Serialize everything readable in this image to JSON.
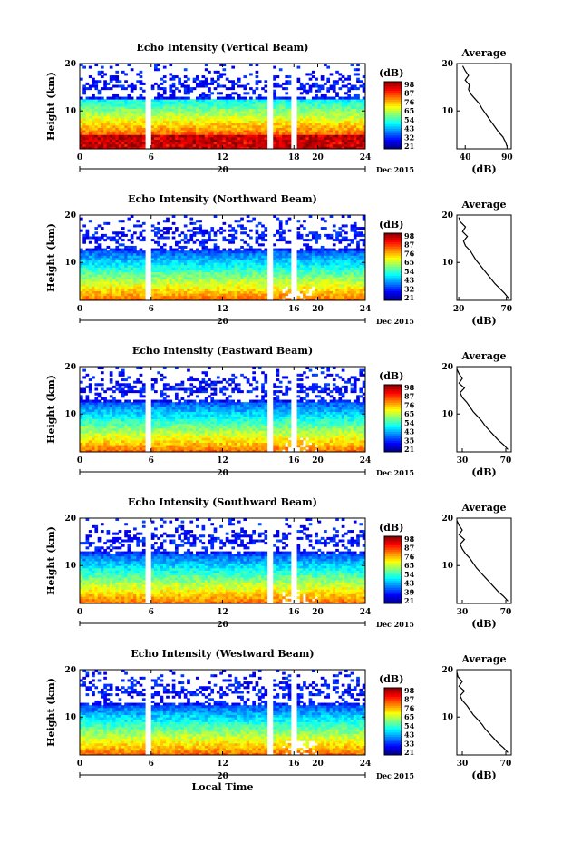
{
  "figure": {
    "xlabel": "Local Time",
    "unit_label": "(dB)",
    "average_title": "Average"
  },
  "chart_data": [
    {
      "type": "heatmap",
      "title": "Echo Intensity (Vertical Beam)",
      "ylabel": "Height (km)",
      "xlabel": "",
      "x_ticks": [
        "0",
        "6",
        "12",
        "18",
        "20",
        "24"
      ],
      "xlim": [
        0,
        24
      ],
      "y_ticks": [
        "10",
        "20"
      ],
      "ylim": [
        2,
        20
      ],
      "date_marker": "20",
      "date_label": "Dec 2015",
      "colorbar": {
        "label": "(dB)",
        "ticks": [
          "98",
          "87",
          "76",
          "65",
          "54",
          "43",
          "32",
          "21"
        ],
        "range": [
          21,
          98
        ]
      },
      "gaps": [
        5.7,
        16.0,
        17.9
      ],
      "profile": {
        "title": "Average",
        "xlabel": "(dB)",
        "x_ticks": [
          "40",
          "90"
        ],
        "xlim": [
          30,
          95
        ],
        "y_ticks": [
          "10",
          "20"
        ],
        "heights": [
          2.5,
          3.5,
          4.5,
          5.5,
          6.5,
          7.5,
          8.5,
          9.5,
          10.5,
          11.5,
          12.5,
          13.5,
          14.5,
          15.5,
          16.5,
          17.5,
          18.5,
          19.5
        ],
        "values": [
          90,
          88,
          85,
          80,
          76,
          72,
          68,
          64,
          60,
          57,
          52,
          47,
          44,
          45,
          40,
          44,
          40,
          37
        ]
      }
    },
    {
      "type": "heatmap",
      "title": "Echo Intensity (Northward Beam)",
      "ylabel": "Height (km)",
      "xlabel": "",
      "x_ticks": [
        "0",
        "6",
        "12",
        "16",
        "20",
        "24"
      ],
      "xlim": [
        0,
        24
      ],
      "y_ticks": [
        "10",
        "20"
      ],
      "ylim": [
        2,
        20
      ],
      "date_marker": "20",
      "date_label": "Dec 2015",
      "colorbar": {
        "label": "(dB)",
        "ticks": [
          "98",
          "87",
          "76",
          "65",
          "54",
          "43",
          "32",
          "21"
        ],
        "range": [
          21,
          98
        ]
      },
      "gaps": [
        5.7,
        16.0,
        17.9
      ],
      "profile": {
        "title": "Average",
        "xlabel": "(dB)",
        "x_ticks": [
          "20",
          "70"
        ],
        "xlim": [
          18,
          75
        ],
        "y_ticks": [
          "10",
          "20"
        ],
        "heights": [
          2.5,
          3.5,
          4.5,
          5.5,
          6.5,
          7.5,
          8.5,
          9.5,
          10.5,
          11.5,
          12.5,
          13.5,
          14.5,
          15.5,
          16.5,
          17.5,
          18.5,
          19.5
        ],
        "values": [
          72,
          68,
          63,
          58,
          54,
          50,
          46,
          42,
          38,
          35,
          32,
          27,
          25,
          29,
          24,
          27,
          22,
          20
        ]
      }
    },
    {
      "type": "heatmap",
      "title": "Echo Intensity (Eastward Beam)",
      "ylabel": "Height (km)",
      "xlabel": "",
      "x_ticks": [
        "0",
        "6",
        "12",
        "16",
        "20",
        "24"
      ],
      "xlim": [
        0,
        24
      ],
      "y_ticks": [
        "10",
        "20"
      ],
      "ylim": [
        2,
        20
      ],
      "date_marker": "20",
      "date_label": "Dec 2015",
      "colorbar": {
        "label": "(dB)",
        "ticks": [
          "98",
          "87",
          "76",
          "65",
          "54",
          "43",
          "35",
          "21"
        ],
        "range": [
          21,
          98
        ]
      },
      "gaps": [
        5.7,
        16.0,
        17.9
      ],
      "profile": {
        "title": "Average",
        "xlabel": "(dB)",
        "x_ticks": [
          "30",
          "70"
        ],
        "xlim": [
          25,
          75
        ],
        "y_ticks": [
          "10",
          "20"
        ],
        "heights": [
          2.5,
          3.5,
          4.5,
          5.5,
          6.5,
          7.5,
          8.5,
          9.5,
          10.5,
          11.5,
          12.5,
          13.5,
          14.5,
          15.5,
          16.5,
          17.5,
          18.5,
          19.5
        ],
        "values": [
          72,
          68,
          63,
          59,
          55,
          51,
          48,
          44,
          40,
          37,
          34,
          30,
          28,
          32,
          27,
          30,
          27,
          25
        ]
      }
    },
    {
      "type": "heatmap",
      "title": "Echo Intensity (Southward Beam)",
      "ylabel": "Height (km)",
      "xlabel": "",
      "x_ticks": [
        "0",
        "6",
        "12",
        "16",
        "20",
        "24"
      ],
      "xlim": [
        0,
        24
      ],
      "y_ticks": [
        "10",
        "20"
      ],
      "ylim": [
        2,
        20
      ],
      "date_marker": "20",
      "date_label": "Dec 2015",
      "colorbar": {
        "label": "(dB)",
        "ticks": [
          "98",
          "87",
          "76",
          "65",
          "54",
          "43",
          "39",
          "21"
        ],
        "range": [
          21,
          98
        ]
      },
      "gaps": [
        5.7,
        16.0,
        17.9
      ],
      "profile": {
        "title": "Average",
        "xlabel": "(dB)",
        "x_ticks": [
          "30",
          "70"
        ],
        "xlim": [
          25,
          75
        ],
        "y_ticks": [
          "10",
          "20"
        ],
        "heights": [
          2.5,
          3.5,
          4.5,
          5.5,
          6.5,
          7.5,
          8.5,
          9.5,
          10.5,
          11.5,
          12.5,
          13.5,
          14.5,
          15.5,
          16.5,
          17.5,
          18.5,
          19.5
        ],
        "values": [
          72,
          68,
          63,
          59,
          55,
          51,
          47,
          43,
          40,
          37,
          33,
          30,
          28,
          32,
          27,
          30,
          27,
          25
        ]
      }
    },
    {
      "type": "heatmap",
      "title": "Echo Intensity (Westward Beam)",
      "ylabel": "Height (km)",
      "xlabel": "Local Time",
      "x_ticks": [
        "0",
        "6",
        "12",
        "16",
        "20",
        "24"
      ],
      "xlim": [
        0,
        24
      ],
      "y_ticks": [
        "10",
        "20"
      ],
      "ylim": [
        2,
        20
      ],
      "date_marker": "20",
      "date_label": "Dec 2015",
      "colorbar": {
        "label": "(dB)",
        "ticks": [
          "98",
          "87",
          "76",
          "65",
          "54",
          "43",
          "33",
          "21"
        ],
        "range": [
          21,
          98
        ]
      },
      "gaps": [
        5.7,
        16.0,
        17.9
      ],
      "profile": {
        "title": "Average",
        "xlabel": "(dB)",
        "x_ticks": [
          "30",
          "70"
        ],
        "xlim": [
          25,
          75
        ],
        "y_ticks": [
          "10",
          "20"
        ],
        "heights": [
          2.5,
          3.5,
          4.5,
          5.5,
          6.5,
          7.5,
          8.5,
          9.5,
          10.5,
          11.5,
          12.5,
          13.5,
          14.5,
          15.5,
          16.5,
          17.5,
          18.5,
          19.5
        ],
        "values": [
          72,
          68,
          63,
          59,
          55,
          51,
          48,
          44,
          40,
          37,
          34,
          30,
          28,
          32,
          27,
          30,
          26,
          25
        ]
      }
    }
  ]
}
